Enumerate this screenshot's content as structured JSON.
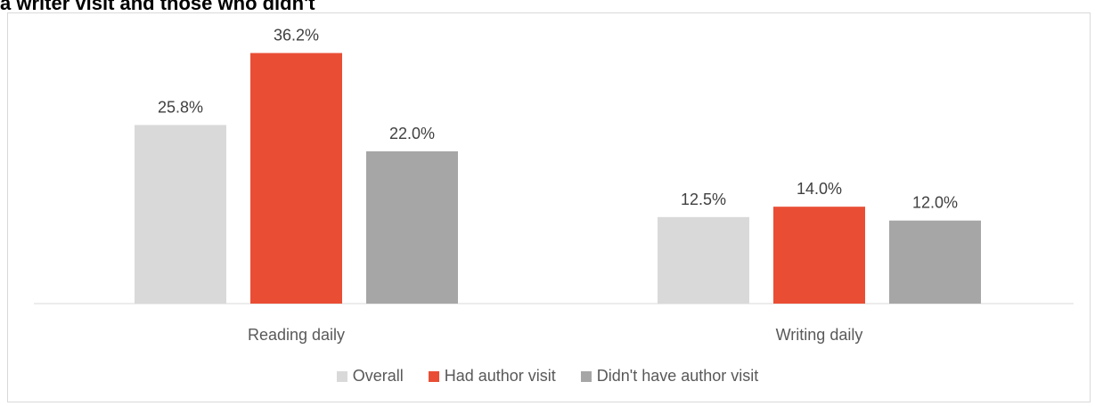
{
  "title": "a writer visit and those who didn't",
  "chart_data": {
    "type": "bar",
    "categories": [
      "Reading daily",
      "Writing daily"
    ],
    "series": [
      {
        "name": "Overall",
        "values": [
          25.8,
          12.5
        ],
        "labels": [
          "25.8%",
          "12.5%"
        ],
        "color": "#d9d9d9"
      },
      {
        "name": "Had author visit",
        "values": [
          36.2,
          14.0
        ],
        "labels": [
          "36.2%",
          "14.0%"
        ],
        "color": "#e94e35"
      },
      {
        "name": "Didn't have author visit",
        "values": [
          22.0,
          12.0
        ],
        "labels": [
          "22.0%",
          "12.0%"
        ],
        "color": "#a6a6a6"
      }
    ],
    "ylim": [
      0,
      40
    ],
    "grid": false,
    "legend_position": "bottom"
  }
}
